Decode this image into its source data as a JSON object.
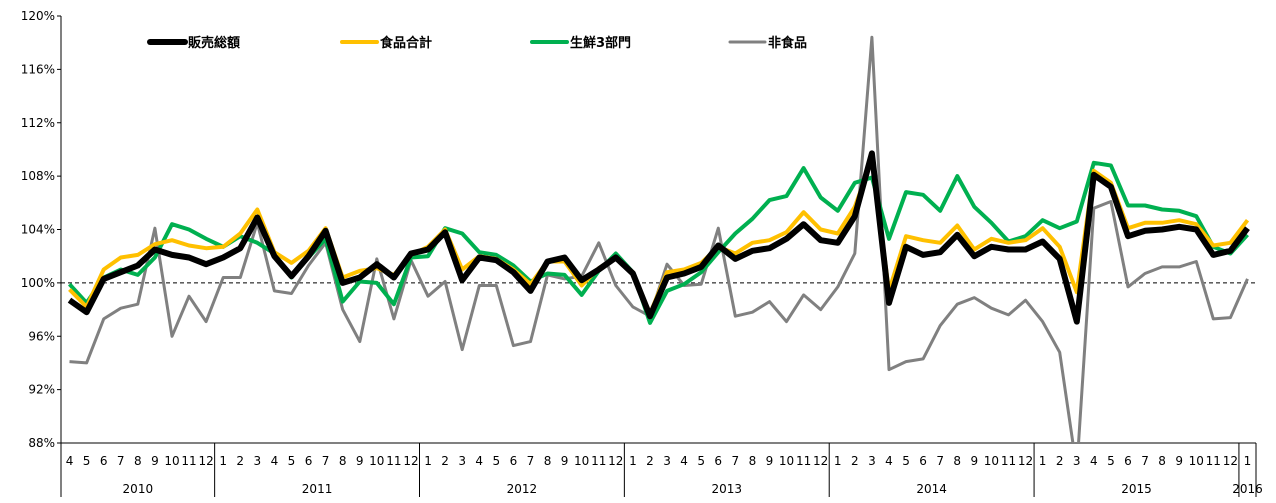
{
  "chart_data": {
    "type": "line",
    "title": "",
    "xlabel": "",
    "ylabel": "",
    "ylim": [
      88,
      120
    ],
    "yticks": [
      88,
      92,
      96,
      100,
      104,
      108,
      112,
      116,
      120
    ],
    "ytick_labels": [
      "88%",
      "92%",
      "96%",
      "100%",
      "104%",
      "108%",
      "112%",
      "116%",
      "120%"
    ],
    "reference_line": {
      "value": 100,
      "style": "dashed",
      "color": "#000000"
    },
    "grid": false,
    "legend_position": "top",
    "month_labels": [
      "4",
      "5",
      "6",
      "7",
      "8",
      "9",
      "10",
      "11",
      "12",
      "1",
      "2",
      "3",
      "4",
      "5",
      "6",
      "7",
      "8",
      "9",
      "10",
      "11",
      "12",
      "1",
      "2",
      "3",
      "4",
      "5",
      "6",
      "7",
      "8",
      "9",
      "10",
      "11",
      "12",
      "1",
      "2",
      "3",
      "4",
      "5",
      "6",
      "7",
      "8",
      "9",
      "10",
      "11",
      "12",
      "1",
      "2",
      "3",
      "4",
      "5",
      "6",
      "7",
      "8",
      "9",
      "10",
      "11",
      "12",
      "1",
      "2",
      "3",
      "4",
      "5",
      "6",
      "7",
      "8",
      "9",
      "10",
      "11",
      "12",
      "1"
    ],
    "year_groups": [
      {
        "label": "2010",
        "count": 9
      },
      {
        "label": "2011",
        "count": 12
      },
      {
        "label": "2012",
        "count": 12
      },
      {
        "label": "2013",
        "count": 12
      },
      {
        "label": "2014",
        "count": 12
      },
      {
        "label": "2015",
        "count": 12
      },
      {
        "label": "2016",
        "count": 1
      }
    ],
    "series": [
      {
        "name": "販売総額",
        "color": "#000000",
        "values": [
          98.7,
          97.8,
          100.3,
          100.8,
          101.3,
          102.5,
          102.1,
          101.9,
          101.4,
          101.9,
          102.6,
          104.9,
          102.0,
          100.5,
          102.0,
          103.9,
          100.0,
          100.4,
          101.4,
          100.4,
          102.2,
          102.5,
          103.8,
          100.2,
          101.9,
          101.7,
          100.8,
          99.4,
          101.6,
          101.9,
          100.2,
          101.0,
          101.9,
          100.7,
          97.5,
          100.4,
          100.7,
          101.2,
          102.8,
          101.8,
          102.4,
          102.6,
          103.3,
          104.4,
          103.2,
          103.0,
          105.0,
          109.7,
          98.5,
          102.7,
          102.1,
          102.3,
          103.6,
          102.0,
          102.7,
          102.5,
          102.5,
          103.1,
          101.8,
          97.1,
          108.1,
          107.2,
          103.5,
          103.9,
          104.0,
          104.2,
          104.0,
          102.1,
          102.4,
          104.1
        ]
      },
      {
        "name": "食品合計",
        "color": "#FFC000",
        "values": [
          99.5,
          98.2,
          101.0,
          101.9,
          102.1,
          102.9,
          103.2,
          102.8,
          102.6,
          102.7,
          103.7,
          105.5,
          102.3,
          101.5,
          102.4,
          104.1,
          100.4,
          100.9,
          101.1,
          100.6,
          102.1,
          102.7,
          104.0,
          101.0,
          102.0,
          101.8,
          101.0,
          99.9,
          101.6,
          101.6,
          99.8,
          101.1,
          101.9,
          100.8,
          97.7,
          100.8,
          101.0,
          101.5,
          102.7,
          102.2,
          103.0,
          103.2,
          103.8,
          105.3,
          104.0,
          103.7,
          105.7,
          109.2,
          99.4,
          103.5,
          103.2,
          103.0,
          104.3,
          102.5,
          103.3,
          103.0,
          103.2,
          104.1,
          102.7,
          99.3,
          108.4,
          107.5,
          104.1,
          104.5,
          104.5,
          104.7,
          104.4,
          102.8,
          103.0,
          104.7
        ]
      },
      {
        "name": "生鮮3部門",
        "color": "#00B050",
        "values": [
          99.9,
          98.5,
          100.4,
          101.0,
          100.6,
          101.9,
          104.4,
          104.0,
          103.3,
          102.7,
          103.5,
          103.0,
          102.2,
          100.4,
          101.9,
          103.3,
          98.6,
          100.1,
          100.0,
          98.4,
          101.9,
          102.0,
          104.1,
          103.7,
          102.3,
          102.1,
          101.3,
          100.1,
          100.7,
          100.6,
          99.1,
          100.9,
          102.2,
          100.8,
          97.0,
          99.4,
          99.9,
          100.8,
          102.3,
          103.7,
          104.8,
          106.2,
          106.5,
          108.6,
          106.4,
          105.4,
          107.5,
          107.9,
          103.3,
          106.8,
          106.6,
          105.4,
          108.0,
          105.7,
          104.5,
          103.1,
          103.5,
          104.7,
          104.1,
          104.6,
          109.0,
          108.8,
          105.8,
          105.8,
          105.5,
          105.4,
          105.0,
          102.7,
          102.2,
          103.6
        ]
      },
      {
        "name": "非食品",
        "color": "#808080",
        "values": [
          94.1,
          94.0,
          97.3,
          98.1,
          98.4,
          104.1,
          96.0,
          99.0,
          97.1,
          100.4,
          100.4,
          104.5,
          99.4,
          99.2,
          101.3,
          103.0,
          98.0,
          95.6,
          101.8,
          97.3,
          101.7,
          99.0,
          100.1,
          95.0,
          99.8,
          99.8,
          95.3,
          95.6,
          100.6,
          100.3,
          100.5,
          103.0,
          99.8,
          98.2,
          97.5,
          101.4,
          99.8,
          99.9,
          104.1,
          97.5,
          97.8,
          98.6,
          97.1,
          99.1,
          98.0,
          99.7,
          102.2,
          118.4,
          93.5,
          94.1,
          94.3,
          96.8,
          98.4,
          98.9,
          98.1,
          97.6,
          98.7,
          97.1,
          94.8,
          86.0,
          105.6,
          106.1,
          99.7,
          100.7,
          101.2,
          101.2,
          101.6,
          97.3,
          97.4,
          100.3
        ]
      }
    ]
  }
}
